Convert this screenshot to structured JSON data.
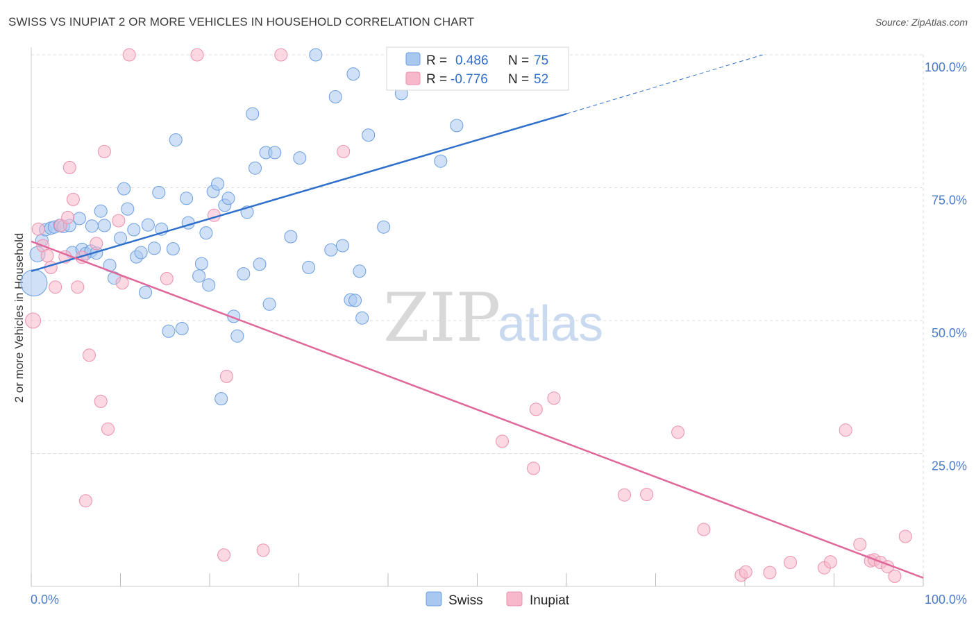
{
  "header": {
    "title": "SWISS VS INUPIAT 2 OR MORE VEHICLES IN HOUSEHOLD CORRELATION CHART",
    "source": "Source: ZipAtlas.com"
  },
  "legend": {
    "swiss": {
      "r_label": "R =",
      "r_value": "0.486",
      "n_label": "N =",
      "n_value": "75"
    },
    "inupiat": {
      "r_label": "R =",
      "r_value": "-0.776",
      "n_label": "N =",
      "n_value": "52"
    }
  },
  "watermark": {
    "zip": "ZIP",
    "atlas": "atlas"
  },
  "colors": {
    "swiss_fill": "#a9c8f0",
    "swiss_stroke": "#6a9ee0",
    "swiss_line": "#2f6fcc",
    "inupiat_fill": "#f7b8cb",
    "inupiat_stroke": "#eb90ad",
    "inupiat_line": "#e0679a",
    "grid": "#dddddd",
    "tick_text": "#4a7cc9"
  },
  "chart_data": {
    "type": "scatter",
    "title": "SWISS VS INUPIAT 2 OR MORE VEHICLES IN HOUSEHOLD CORRELATION CHART",
    "xlabel": "",
    "ylabel": "2 or more Vehicles in Household",
    "xlim": [
      0,
      100
    ],
    "ylim": [
      0,
      100
    ],
    "x_tick_labels": [
      "0.0%",
      "100.0%"
    ],
    "y_tick_values": [
      25,
      50,
      75,
      100
    ],
    "y_tick_labels": [
      "25.0%",
      "50.0%",
      "75.0%",
      "100.0%"
    ],
    "grid": true,
    "legend_position": "top-center",
    "series": [
      {
        "name": "Swiss",
        "color": "#a9c8f0",
        "trend": {
          "x": [
            0,
            60
          ],
          "y": [
            59.3,
            88.9
          ],
          "dashed_extension_to": [
            82,
            100
          ]
        },
        "points": [
          [
            0.3,
            57.1,
            18
          ],
          [
            0.7,
            62.5,
            10
          ],
          [
            1.2,
            65.1,
            8
          ],
          [
            1.6,
            67.1,
            8
          ],
          [
            2.2,
            67.4,
            8
          ],
          [
            2.6,
            67.6,
            8
          ],
          [
            3.2,
            67.9,
            8
          ],
          [
            3.6,
            67.7,
            8
          ],
          [
            4.3,
            67.9,
            8
          ],
          [
            5.4,
            69.2,
            8
          ],
          [
            4.6,
            62.8,
            8
          ],
          [
            5.7,
            63.4,
            8
          ],
          [
            6.1,
            62.6,
            8
          ],
          [
            6.7,
            63.1,
            8
          ],
          [
            6.8,
            67.8,
            8
          ],
          [
            7.3,
            62.7,
            8
          ],
          [
            7.8,
            70.6,
            8
          ],
          [
            8.2,
            67.9,
            8
          ],
          [
            8.8,
            60.4,
            8
          ],
          [
            9.3,
            58.0,
            8
          ],
          [
            10.0,
            65.5,
            8
          ],
          [
            10.4,
            74.8,
            8
          ],
          [
            10.8,
            71.0,
            8
          ],
          [
            11.5,
            67.1,
            8
          ],
          [
            11.8,
            62.0,
            8
          ],
          [
            12.3,
            62.8,
            8
          ],
          [
            12.8,
            55.3,
            8
          ],
          [
            13.1,
            68.0,
            8
          ],
          [
            13.8,
            63.6,
            8
          ],
          [
            14.3,
            74.1,
            8
          ],
          [
            14.6,
            67.2,
            8
          ],
          [
            15.4,
            48.0,
            8
          ],
          [
            15.9,
            63.5,
            8
          ],
          [
            16.2,
            84.0,
            8
          ],
          [
            16.9,
            48.5,
            8
          ],
          [
            17.4,
            73.0,
            8
          ],
          [
            17.6,
            68.4,
            8
          ],
          [
            18.8,
            58.4,
            8
          ],
          [
            19.1,
            60.7,
            8
          ],
          [
            19.6,
            66.5,
            8
          ],
          [
            19.9,
            56.7,
            8
          ],
          [
            20.4,
            74.3,
            8
          ],
          [
            20.9,
            75.7,
            8
          ],
          [
            21.3,
            35.3,
            8
          ],
          [
            21.7,
            71.7,
            8
          ],
          [
            22.1,
            73.0,
            8
          ],
          [
            22.7,
            50.8,
            8
          ],
          [
            23.1,
            47.1,
            8
          ],
          [
            23.8,
            58.8,
            8
          ],
          [
            24.2,
            70.4,
            8
          ],
          [
            24.8,
            88.9,
            8
          ],
          [
            25.1,
            78.7,
            8
          ],
          [
            25.6,
            60.6,
            8
          ],
          [
            26.3,
            81.6,
            8
          ],
          [
            26.7,
            53.1,
            8
          ],
          [
            27.3,
            81.6,
            8
          ],
          [
            29.1,
            65.8,
            8
          ],
          [
            30.1,
            80.6,
            8
          ],
          [
            31.1,
            60.0,
            8
          ],
          [
            31.9,
            100.0,
            8
          ],
          [
            33.6,
            63.3,
            8
          ],
          [
            34.1,
            92.1,
            8
          ],
          [
            34.9,
            64.1,
            8
          ],
          [
            35.8,
            53.9,
            8
          ],
          [
            36.1,
            96.4,
            8
          ],
          [
            36.3,
            53.8,
            8
          ],
          [
            36.8,
            59.3,
            8
          ],
          [
            37.1,
            50.5,
            8
          ],
          [
            37.8,
            84.9,
            8
          ],
          [
            39.5,
            67.6,
            8
          ],
          [
            41.5,
            92.7,
            8
          ],
          [
            42.8,
            100.0,
            8
          ],
          [
            44.8,
            100.0,
            8
          ],
          [
            45.9,
            80.0,
            8
          ],
          [
            47.7,
            86.7,
            8
          ]
        ]
      },
      {
        "name": "Inupiat",
        "color": "#f7b8cb",
        "trend": {
          "x": [
            0,
            100
          ],
          "y": [
            64.9,
            1.6
          ]
        },
        "points": [
          [
            0.2,
            50.0,
            10
          ],
          [
            0.8,
            67.2,
            8
          ],
          [
            1.3,
            64.1,
            8
          ],
          [
            1.8,
            62.2,
            8
          ],
          [
            2.2,
            60.0,
            8
          ],
          [
            2.7,
            56.3,
            8
          ],
          [
            3.3,
            67.9,
            8
          ],
          [
            3.8,
            62.0,
            8
          ],
          [
            4.1,
            69.4,
            8
          ],
          [
            4.3,
            78.8,
            8
          ],
          [
            4.7,
            72.8,
            8
          ],
          [
            5.2,
            56.3,
            8
          ],
          [
            5.7,
            61.9,
            8
          ],
          [
            6.1,
            16.1,
            8
          ],
          [
            6.5,
            43.5,
            8
          ],
          [
            7.3,
            64.5,
            8
          ],
          [
            7.8,
            34.8,
            8
          ],
          [
            8.2,
            81.8,
            8
          ],
          [
            8.6,
            29.6,
            8
          ],
          [
            9.8,
            68.8,
            8
          ],
          [
            10.2,
            57.1,
            8
          ],
          [
            11.0,
            100.0,
            8
          ],
          [
            15.2,
            57.9,
            8
          ],
          [
            18.6,
            100.0,
            8
          ],
          [
            20.5,
            69.8,
            8
          ],
          [
            21.6,
            5.9,
            8
          ],
          [
            21.9,
            39.5,
            8
          ],
          [
            26.0,
            6.8,
            8
          ],
          [
            28.0,
            100.0,
            8
          ],
          [
            35.0,
            81.8,
            8
          ],
          [
            52.8,
            27.3,
            8
          ],
          [
            56.3,
            22.2,
            8
          ],
          [
            56.6,
            33.3,
            8
          ],
          [
            58.6,
            35.4,
            8
          ],
          [
            66.5,
            17.2,
            8
          ],
          [
            69.0,
            17.3,
            8
          ],
          [
            72.5,
            29.0,
            8
          ],
          [
            75.4,
            10.7,
            8
          ],
          [
            79.6,
            2.1,
            8
          ],
          [
            80.1,
            2.7,
            8
          ],
          [
            82.8,
            2.6,
            8
          ],
          [
            85.1,
            4.5,
            8
          ],
          [
            88.9,
            3.5,
            8
          ],
          [
            89.6,
            4.6,
            8
          ],
          [
            91.3,
            29.4,
            8
          ],
          [
            92.9,
            7.9,
            8
          ],
          [
            94.1,
            4.8,
            8
          ],
          [
            94.5,
            5.0,
            8
          ],
          [
            95.2,
            4.5,
            8
          ],
          [
            96.0,
            3.7,
            8
          ],
          [
            96.8,
            1.9,
            8
          ],
          [
            98.0,
            9.4,
            8
          ]
        ]
      }
    ]
  },
  "bottom_legend": {
    "swiss": "Swiss",
    "inupiat": "Inupiat"
  }
}
